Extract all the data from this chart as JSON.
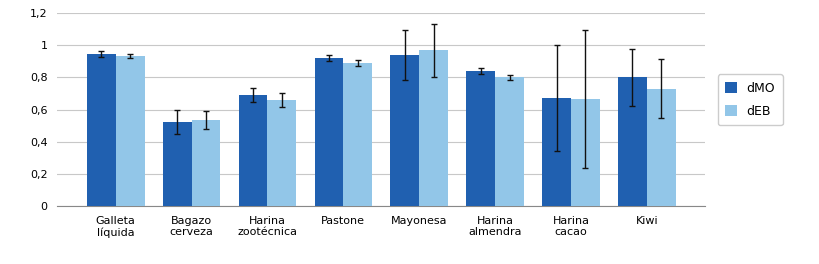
{
  "categories": [
    "Galleta\nlíquida",
    "Bagazo\ncerveza",
    "Harina\nzootécnica",
    "Pastone",
    "Mayonesa",
    "Harina\nalmendra",
    "Harina\ncacao",
    "Kiwi"
  ],
  "dMO_values": [
    0.948,
    0.525,
    0.69,
    0.92,
    0.94,
    0.84,
    0.675,
    0.8
  ],
  "dEB_values": [
    0.935,
    0.535,
    0.66,
    0.89,
    0.97,
    0.8,
    0.665,
    0.73
  ],
  "dMO_errors": [
    0.018,
    0.075,
    0.045,
    0.018,
    0.155,
    0.018,
    0.33,
    0.175
  ],
  "dEB_errors": [
    0.013,
    0.055,
    0.045,
    0.018,
    0.165,
    0.013,
    0.43,
    0.185
  ],
  "dMO_color": "#2060B0",
  "dEB_color": "#92C6E8",
  "ylim": [
    0,
    1.2
  ],
  "yticks": [
    0,
    0.2,
    0.4,
    0.6,
    0.8,
    1.0,
    1.2
  ],
  "ytick_labels": [
    "0",
    "0,2",
    "0,4",
    "0,6",
    "0,8",
    "1",
    "1,2"
  ],
  "legend_labels": [
    "dMO",
    "dEB"
  ],
  "bar_width": 0.38,
  "figsize": [
    8.2,
    2.64
  ],
  "dpi": 100,
  "background_color": "#FFFFFF",
  "grid_color": "#C8C8C8",
  "error_capsize": 2,
  "error_color": "#111111",
  "error_linewidth": 1.0
}
